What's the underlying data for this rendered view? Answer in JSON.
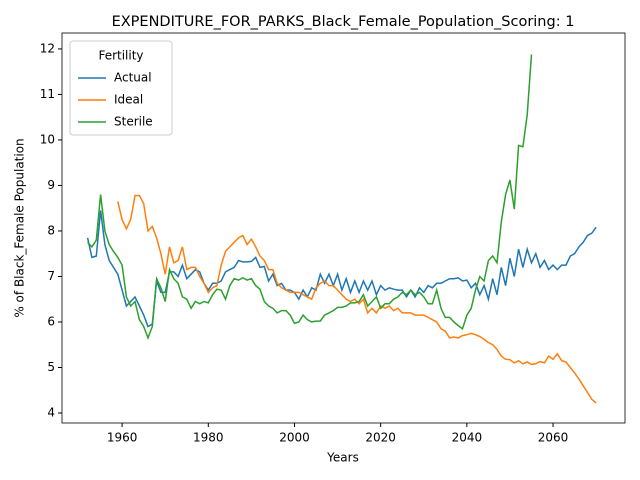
{
  "chart_data": {
    "type": "line",
    "title": "EXPENDITURE_FOR_PARKS_Black_Female_Population_Scoring: 1",
    "xlabel": "Years",
    "ylabel": "% of Black_Female Population",
    "legend_title": "Fertility",
    "legend": "upper left",
    "x": [
      1952,
      1953,
      1954,
      1955,
      1956,
      1957,
      1958,
      1959,
      1960,
      1961,
      1962,
      1963,
      1964,
      1965,
      1966,
      1967,
      1968,
      1969,
      1970,
      1971,
      1972,
      1973,
      1974,
      1975,
      1976,
      1977,
      1978,
      1979,
      1980,
      1981,
      1982,
      1983,
      1984,
      1985,
      1986,
      1987,
      1988,
      1989,
      1990,
      1991,
      1992,
      1993,
      1994,
      1995,
      1996,
      1997,
      1998,
      1999,
      2000,
      2001,
      2002,
      2003,
      2004,
      2005,
      2006,
      2007,
      2008,
      2009,
      2010,
      2011,
      2012,
      2013,
      2014,
      2015,
      2016,
      2017,
      2018,
      2019,
      2020,
      2021,
      2022,
      2023,
      2024,
      2025,
      2026,
      2027,
      2028,
      2029,
      2030,
      2031,
      2032,
      2033,
      2034,
      2035,
      2036,
      2037,
      2038,
      2039,
      2040,
      2041,
      2042,
      2043,
      2044,
      2045,
      2046,
      2047,
      2048,
      2049,
      2050,
      2051,
      2052,
      2053,
      2054,
      2055,
      2056,
      2057,
      2058,
      2059,
      2060,
      2061,
      2062,
      2063,
      2064,
      2065,
      2066,
      2067,
      2068,
      2069,
      2070
    ],
    "series": [
      {
        "name": "Actual",
        "color": "#1f77b4",
        "values": [
          7.85,
          7.42,
          7.45,
          8.45,
          7.7,
          7.35,
          7.2,
          7.05,
          6.7,
          6.35,
          6.45,
          6.55,
          6.35,
          6.15,
          5.9,
          5.95,
          6.9,
          6.65,
          6.65,
          7.1,
          7.1,
          7.0,
          7.25,
          6.95,
          7.05,
          7.15,
          7.1,
          6.85,
          6.7,
          6.85,
          6.85,
          6.9,
          7.1,
          7.15,
          7.2,
          7.35,
          7.32,
          7.32,
          7.33,
          7.42,
          7.2,
          7.22,
          6.9,
          7.05,
          6.8,
          6.85,
          6.7,
          6.7,
          6.65,
          6.5,
          6.7,
          6.55,
          6.75,
          6.7,
          7.05,
          6.85,
          7.05,
          6.8,
          7.05,
          6.7,
          6.95,
          6.65,
          6.9,
          6.65,
          6.9,
          6.7,
          6.9,
          6.6,
          6.8,
          6.7,
          6.75,
          6.72,
          6.7,
          6.7,
          6.55,
          6.7,
          6.55,
          6.75,
          6.65,
          6.8,
          6.75,
          6.85,
          6.85,
          6.9,
          6.95,
          6.95,
          6.97,
          6.9,
          6.92,
          6.75,
          6.85,
          6.6,
          6.8,
          6.5,
          6.95,
          6.6,
          7.2,
          6.8,
          7.4,
          7.0,
          7.6,
          7.2,
          7.6,
          7.3,
          7.5,
          7.2,
          7.35,
          7.15,
          7.25,
          7.15,
          7.25,
          7.25,
          7.45,
          7.5,
          7.65,
          7.75,
          7.9,
          7.95,
          8.08
        ]
      },
      {
        "name": "Ideal",
        "color": "#ff7f0e",
        "values": [
          null,
          null,
          null,
          null,
          null,
          null,
          null,
          8.65,
          8.25,
          8.05,
          8.25,
          8.78,
          8.78,
          8.6,
          8.0,
          8.1,
          7.85,
          7.5,
          7.05,
          7.65,
          7.3,
          7.35,
          7.65,
          7.15,
          7.2,
          7.2,
          7.0,
          6.85,
          6.65,
          6.75,
          6.8,
          7.25,
          7.55,
          7.65,
          7.75,
          7.85,
          7.9,
          7.7,
          7.82,
          7.65,
          7.45,
          7.35,
          7.15,
          7.15,
          6.85,
          6.75,
          6.7,
          6.65,
          6.65,
          6.65,
          6.6,
          6.55,
          6.5,
          6.75,
          6.85,
          6.9,
          6.8,
          6.8,
          6.7,
          6.6,
          6.5,
          6.45,
          6.5,
          6.4,
          6.5,
          6.2,
          6.3,
          6.2,
          6.35,
          6.3,
          6.35,
          6.25,
          6.3,
          6.2,
          6.2,
          6.2,
          6.15,
          6.15,
          6.15,
          6.1,
          6.05,
          6.0,
          5.85,
          5.8,
          5.65,
          5.67,
          5.65,
          5.7,
          5.72,
          5.75,
          5.72,
          5.68,
          5.62,
          5.55,
          5.5,
          5.4,
          5.25,
          5.18,
          5.17,
          5.1,
          5.15,
          5.08,
          5.12,
          5.07,
          5.08,
          5.13,
          5.1,
          5.25,
          5.18,
          5.3,
          5.15,
          5.12,
          5.0,
          4.88,
          4.75,
          4.6,
          4.45,
          4.3,
          4.22
        ]
      },
      {
        "name": "Sterile",
        "color": "#2ca02c",
        "values": [
          7.75,
          7.65,
          7.8,
          8.8,
          8.0,
          7.7,
          7.55,
          7.42,
          7.25,
          6.55,
          6.35,
          6.45,
          6.05,
          5.9,
          5.65,
          5.9,
          6.95,
          6.75,
          6.45,
          7.15,
          6.95,
          6.85,
          6.55,
          6.5,
          6.3,
          6.45,
          6.4,
          6.45,
          6.42,
          6.6,
          6.72,
          6.7,
          6.5,
          6.8,
          6.95,
          6.92,
          6.97,
          6.92,
          6.95,
          6.8,
          6.72,
          6.45,
          6.35,
          6.3,
          6.2,
          6.25,
          6.25,
          6.15,
          5.97,
          6.0,
          6.15,
          6.05,
          6.0,
          6.02,
          6.02,
          6.15,
          6.2,
          6.25,
          6.32,
          6.32,
          6.35,
          6.42,
          6.42,
          6.45,
          6.6,
          6.35,
          6.45,
          6.55,
          6.3,
          6.4,
          6.4,
          6.5,
          6.55,
          6.65,
          6.6,
          6.7,
          6.6,
          6.65,
          6.55,
          6.4,
          6.4,
          6.7,
          6.3,
          6.1,
          6.1,
          6.0,
          5.92,
          5.85,
          6.15,
          6.3,
          6.7,
          7.0,
          6.9,
          7.35,
          7.45,
          7.3,
          8.2,
          8.8,
          9.12,
          8.48,
          9.88,
          9.85,
          10.55,
          11.88,
          null,
          null,
          null,
          null,
          null,
          null,
          null,
          null,
          null,
          null,
          null,
          null,
          null,
          null,
          null
        ]
      }
    ],
    "xlim": [
      1946.05,
      2076.7
    ],
    "xticks": [
      1960,
      1980,
      2000,
      2020,
      2040,
      2060
    ],
    "ylim": [
      3.78,
      12.35
    ],
    "yticks": [
      4,
      5,
      6,
      7,
      8,
      9,
      10,
      11,
      12
    ]
  }
}
